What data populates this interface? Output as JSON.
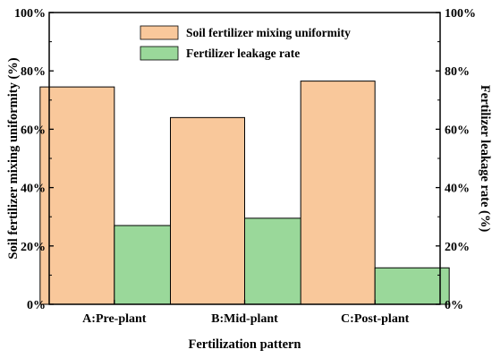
{
  "chart_data": {
    "type": "bar",
    "title": "",
    "categories": [
      "A:Pre-plant",
      "B:Mid-plant",
      "C:Post-plant"
    ],
    "xlabel": "Fertilization pattern",
    "ylabel_left": "Soil fertilizer mixing uniformity (%)",
    "ylabel_right": "Fertilizer leakage rate (%)",
    "ylim": [
      0,
      100
    ],
    "y_ticks": [
      "0%",
      "20%",
      "40%",
      "60%",
      "80%",
      "100%"
    ],
    "y_tick_values": [
      0,
      20,
      40,
      60,
      80,
      100
    ],
    "legend_position": "top-center",
    "grid": false,
    "series": [
      {
        "name": "Soil fertilizer mixing uniformity",
        "axis": "left",
        "color": "#F9C89B",
        "values": [
          74.5,
          64,
          76.5
        ]
      },
      {
        "name": "Fertilizer leakage rate",
        "axis": "right",
        "color": "#9AD89A",
        "values": [
          27,
          29.5,
          12.5
        ]
      }
    ]
  }
}
